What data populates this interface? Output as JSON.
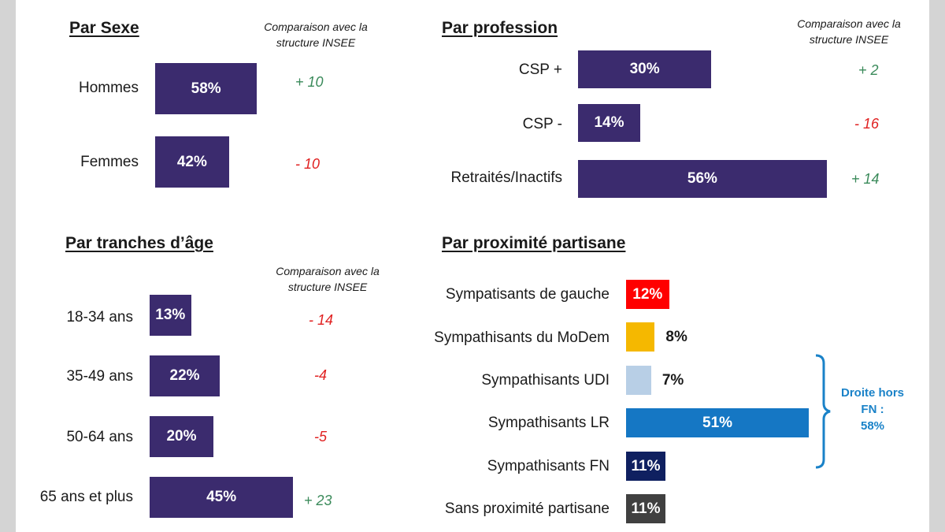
{
  "sections": {
    "sexe": {
      "title": "Par Sexe",
      "note_line1": "Comparaison avec la",
      "note_line2": "structure INSEE",
      "labels": [
        "Hommes",
        "Femmes"
      ],
      "values": [
        58,
        42
      ],
      "value_labels": [
        "58%",
        "42%"
      ],
      "diffs": [
        "+ 10",
        "- 10"
      ]
    },
    "profession": {
      "title": "Par profession",
      "note_line1": "Comparaison avec la",
      "note_line2": "structure INSEE",
      "labels": [
        "CSP +",
        "CSP -",
        "Retraités/Inactifs"
      ],
      "values": [
        30,
        14,
        56
      ],
      "value_labels": [
        "30%",
        "14%",
        "56%"
      ],
      "diffs": [
        "+ 2",
        "- 16",
        "+ 14"
      ]
    },
    "age": {
      "title": "Par tranches d’âge",
      "note_line1": "Comparaison avec la",
      "note_line2": "structure INSEE",
      "labels": [
        "18-34 ans",
        "35-49 ans",
        "50-64 ans",
        "65 ans et plus"
      ],
      "values": [
        13,
        22,
        20,
        45
      ],
      "value_labels": [
        "13%",
        "22%",
        "20%",
        "45%"
      ],
      "diffs": [
        "- 14",
        "-4",
        "-5",
        "+ 23"
      ]
    },
    "partisan": {
      "title": "Par proximité partisane",
      "labels": [
        "Sympatisants de gauche",
        "Sympathisants du MoDem",
        "Sympathisants UDI",
        "Sympathisants LR",
        "Sympathisants FN",
        "Sans proximité partisane"
      ],
      "values": [
        12,
        8,
        7,
        51,
        11,
        11
      ],
      "value_labels": [
        "12%",
        "8%",
        "7%",
        "51%",
        "11%",
        "11%"
      ],
      "bracket_line1": "Droite hors",
      "bracket_line2": "FN :",
      "bracket_line3": "58%"
    }
  },
  "colors": {
    "main_bar": "#3b2b6e",
    "positive": "#3a8a5a",
    "negative": "#e02020",
    "gauche": "#ff0000",
    "modem": "#f5b800",
    "udi": "#b8cfe6",
    "lr": "#1577c4",
    "fn": "#0f2060",
    "sans": "#404040",
    "bracket": "#1a82c8"
  },
  "chart_data": [
    {
      "type": "bar",
      "title": "Par Sexe",
      "categories": [
        "Hommes",
        "Femmes"
      ],
      "values": [
        58,
        42
      ],
      "unit": "%",
      "comparison_title": "Comparaison avec la structure INSEE",
      "comparison": [
        "+ 10",
        "- 10"
      ]
    },
    {
      "type": "bar",
      "title": "Par profession",
      "categories": [
        "CSP +",
        "CSP -",
        "Retraités/Inactifs"
      ],
      "values": [
        30,
        14,
        56
      ],
      "unit": "%",
      "comparison_title": "Comparaison avec la structure INSEE",
      "comparison": [
        "+ 2",
        "- 16",
        "+ 14"
      ]
    },
    {
      "type": "bar",
      "title": "Par tranches d’âge",
      "categories": [
        "18-34 ans",
        "35-49 ans",
        "50-64 ans",
        "65 ans et plus"
      ],
      "values": [
        13,
        22,
        20,
        45
      ],
      "unit": "%",
      "comparison_title": "Comparaison avec la structure INSEE",
      "comparison": [
        "- 14",
        "-4",
        "-5",
        "+ 23"
      ]
    },
    {
      "type": "bar",
      "title": "Par proximité partisane",
      "categories": [
        "Sympatisants de gauche",
        "Sympathisants du MoDem",
        "Sympathisants UDI",
        "Sympathisants LR",
        "Sympathisants FN",
        "Sans proximité partisane"
      ],
      "values": [
        12,
        8,
        7,
        51,
        11,
        11
      ],
      "unit": "%",
      "annotation": "Droite hors FN : 58%"
    }
  ]
}
